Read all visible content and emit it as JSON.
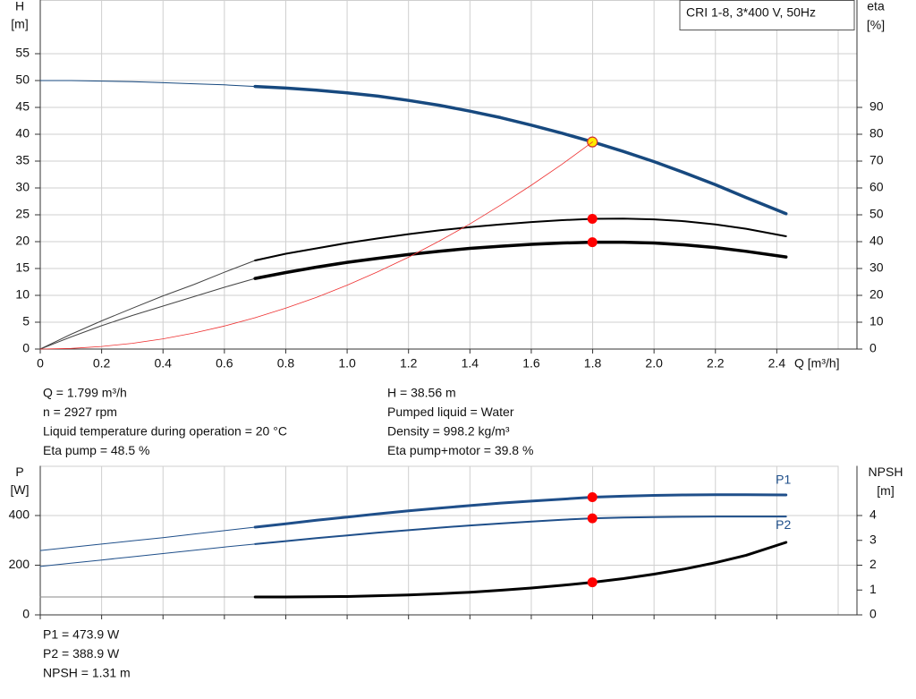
{
  "chart_data": [
    {
      "type": "line",
      "title": "CRI 1-8, 3*400 V, 50Hz",
      "ylabel": "H",
      "yunit": "[m]",
      "y2label": "eta",
      "y2unit": "[%]",
      "xlabel": "Q [m³/h]",
      "x": [
        0,
        0.1,
        0.2,
        0.3,
        0.4,
        0.5,
        0.6,
        0.7,
        0.8,
        0.9,
        1.0,
        1.1,
        1.2,
        1.3,
        1.4,
        1.5,
        1.6,
        1.7,
        1.8,
        1.9,
        2.0,
        2.1,
        2.2,
        2.3,
        2.43
      ],
      "xlim": [
        0,
        2.6
      ],
      "xticks": [
        0,
        0.2,
        0.4,
        0.6,
        0.8,
        {
          "value": 1,
          "label": "1.0"
        },
        1.2,
        1.4,
        1.6,
        1.8,
        {
          "value": 2,
          "label": "2.0"
        },
        2.2,
        2.4
      ],
      "ylim": [
        0,
        65
      ],
      "yticks": [
        0,
        5,
        10,
        15,
        20,
        25,
        30,
        35,
        40,
        45,
        50,
        55
      ],
      "y2lim": [
        0,
        130
      ],
      "y2ticks": [
        0,
        10,
        20,
        30,
        40,
        50,
        60,
        70,
        80,
        90
      ],
      "grid": true,
      "operating_range": [
        0.7,
        2.43
      ],
      "operating_q": 1.799,
      "series": [
        {
          "color": "#17497f",
          "axis": "y",
          "op_value": 38.56,
          "op_color": "#ffea00",
          "values": [
            50,
            50,
            49.9,
            49.8,
            49.6,
            49.4,
            49.2,
            48.9,
            48.6,
            48.2,
            47.7,
            47.1,
            46.3,
            45.4,
            44.3,
            43.1,
            41.7,
            40.2,
            38.56,
            36.8,
            34.9,
            32.8,
            30.6,
            28.2,
            25.2
          ]
        },
        {
          "color": "#000000",
          "axis": "y2",
          "op_value": 48.5,
          "op_color": "#ff0000",
          "values": [
            0,
            5.5,
            10.5,
            15.2,
            19.8,
            24,
            28.6,
            33,
            35.5,
            37.5,
            39.5,
            41.2,
            42.8,
            44.2,
            45.4,
            46.4,
            47.3,
            48,
            48.5,
            48.6,
            48.3,
            47.6,
            46.4,
            44.8,
            42
          ]
        },
        {
          "color": "#000000",
          "axis": "y2",
          "op_value": 39.8,
          "op_color": "#ff0000",
          "values": [
            0,
            4.5,
            8.7,
            12.5,
            16,
            19.5,
            23,
            26.3,
            28.5,
            30.5,
            32.3,
            33.8,
            35.2,
            36.4,
            37.5,
            38.3,
            39,
            39.5,
            39.8,
            39.8,
            39.5,
            38.8,
            37.8,
            36.4,
            34.3
          ]
        },
        {
          "color": "#ee3030",
          "axis": "y",
          "values": [
            0,
            0.12,
            0.48,
            1.07,
            1.9,
            2.98,
            4.28,
            5.83,
            7.62,
            9.64,
            11.9,
            14.4,
            17.1,
            20.1,
            23.3,
            26.8,
            30.5,
            34.4,
            38.56,
            null,
            null,
            null,
            null,
            null,
            null
          ]
        }
      ],
      "annotations": [
        [
          "Q = 1.799 m³/h",
          "n = 2927 rpm",
          "Liquid temperature during operation = 20 °C",
          "Eta pump = 48.5 %"
        ],
        [
          "H = 38.56 m",
          "Pumped liquid = Water",
          "Density = 998.2 kg/m³",
          "Eta pump+motor = 39.8 %"
        ]
      ]
    },
    {
      "type": "line",
      "ylabel": "P",
      "yunit": "[W]",
      "y2label": "NPSH",
      "y2unit": "[m]",
      "x": [
        0,
        0.1,
        0.2,
        0.3,
        0.4,
        0.5,
        0.6,
        0.7,
        0.8,
        0.9,
        1.0,
        1.1,
        1.2,
        1.3,
        1.4,
        1.5,
        1.6,
        1.7,
        1.8,
        1.9,
        2.0,
        2.1,
        2.2,
        2.3,
        2.43
      ],
      "xlim": [
        0,
        2.6
      ],
      "xticks": [
        0,
        0.2,
        0.4,
        0.6,
        0.8,
        1,
        1.2,
        1.4,
        1.6,
        1.8,
        2,
        2.2,
        2.4
      ],
      "ylim": [
        0,
        600
      ],
      "yticks": [
        0,
        200,
        400
      ],
      "y2lim": [
        0,
        6
      ],
      "y2ticks": [
        0,
        1,
        2,
        3,
        4
      ],
      "grid": true,
      "operating_range": [
        0.7,
        2.43
      ],
      "operating_q": 1.799,
      "series": [
        {
          "name": "P1",
          "color": "#1f4f8a",
          "axis": "y",
          "op_value": 473.9,
          "op_color": "#ff0000",
          "values": [
            259,
            272,
            285,
            298,
            311,
            325,
            339,
            353,
            367,
            381,
            394,
            407,
            419,
            430,
            440,
            450,
            458,
            466,
            473.9,
            478,
            481,
            483,
            484,
            484,
            483
          ]
        },
        {
          "name": "P2",
          "color": "#1f4f8a",
          "axis": "y",
          "op_value": 388.9,
          "op_color": "#ff0000",
          "values": [
            195,
            208,
            221,
            234,
            247,
            260,
            273,
            285,
            297,
            309,
            320,
            331,
            341,
            351,
            360,
            368,
            376,
            383,
            388.9,
            392,
            394,
            395,
            396,
            396,
            396
          ]
        },
        {
          "color": "#000000",
          "axis": "y2",
          "op_value": 1.31,
          "op_color": "#ff0000",
          "values": [
            0.72,
            0.72,
            0.72,
            0.72,
            0.72,
            0.72,
            0.72,
            0.72,
            0.72,
            0.73,
            0.74,
            0.77,
            0.8,
            0.85,
            0.91,
            0.99,
            1.08,
            1.19,
            1.31,
            1.46,
            1.64,
            1.85,
            2.1,
            2.4,
            2.92
          ]
        }
      ],
      "annotations": [
        [
          "P1 = 473.9 W",
          "P2 = 388.9 W",
          "NPSH = 1.31 m"
        ]
      ]
    }
  ]
}
